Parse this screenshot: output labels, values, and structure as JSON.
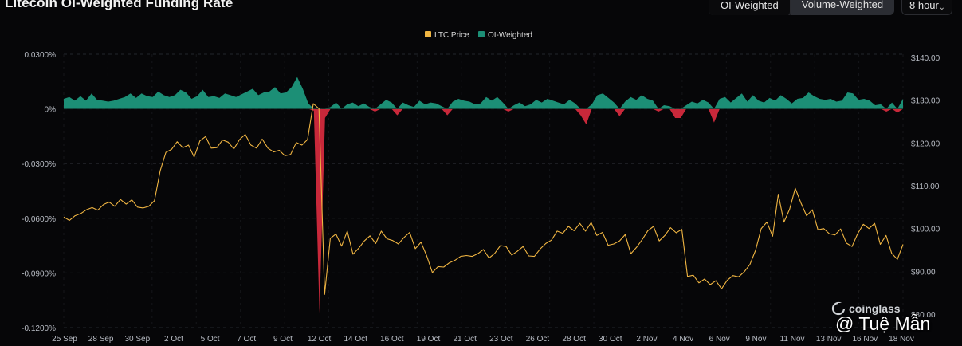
{
  "header": {
    "title": "Litecoin OI-Weighted Funding Rate",
    "toggle": [
      "OI-Weighted",
      "Volume-Weighted"
    ],
    "interval": "8 hour"
  },
  "watermark": {
    "brand": "coinglass",
    "user": "@ Tuệ Mẫn"
  },
  "colors": {
    "price": "#f0b542",
    "positive": "#1c8f76",
    "negative": "#c8283a",
    "grid": "#23252b",
    "text": "#b8bcc4"
  },
  "chart_data": {
    "type": "area",
    "legend": [
      "LTC Price",
      "OI-Weighted"
    ],
    "legend_position": "top-center",
    "x_ticks": [
      "25 Sep",
      "28 Sep",
      "30 Sep",
      "2 Oct",
      "5 Oct",
      "7 Oct",
      "9 Oct",
      "12 Oct",
      "14 Oct",
      "16 Oct",
      "19 Oct",
      "21 Oct",
      "23 Oct",
      "26 Oct",
      "28 Oct",
      "30 Oct",
      "2 Nov",
      "4 Nov",
      "6 Nov",
      "9 Nov",
      "11 Nov",
      "13 Nov",
      "16 Nov",
      "18 Nov"
    ],
    "y_left_ticks": [
      "0.0300%",
      "0%",
      "-0.0300%",
      "-0.0600%",
      "-0.0900%",
      "-0.1200%"
    ],
    "y_left_range": [
      -0.12,
      0.03
    ],
    "y_right_ticks": [
      "$140.00",
      "$130.00",
      "$120.00",
      "$110.00",
      "$100.00",
      "$90.00",
      "$80.00"
    ],
    "y_right_range": [
      80,
      140
    ],
    "series": [
      {
        "name": "OI-Weighted",
        "axis": "left",
        "values": [
          0.0055,
          0.0065,
          0.0045,
          0.007,
          0.0045,
          0.0085,
          0.005,
          0.0045,
          0.004,
          0.0045,
          0.0055,
          0.0065,
          0.0085,
          0.006,
          0.0085,
          0.007,
          0.0065,
          0.0095,
          0.0075,
          0.0065,
          0.0075,
          0.0105,
          0.009,
          0.0055,
          0.007,
          0.0105,
          0.0065,
          0.007,
          0.006,
          0.0085,
          0.0075,
          0.0065,
          0.008,
          0.0095,
          0.011,
          0.0075,
          0.009,
          0.0095,
          0.012,
          0.0085,
          0.009,
          0.012,
          0.0175,
          0.011,
          0.003,
          -0.001,
          -0.112,
          -0.005,
          0.001,
          0.0035,
          0.0,
          0.0025,
          0.0035,
          0.0015,
          0.003,
          0.001,
          -0.0015,
          0.0025,
          0.005,
          0.0035,
          -0.0035,
          0.0035,
          0.002,
          0.001,
          0.0045,
          0.0025,
          0.0035,
          0.003,
          0.0015,
          -0.0035,
          0.004,
          0.0055,
          0.0045,
          0.004,
          0.0025,
          0.003,
          0.0065,
          0.0045,
          0.0065,
          0.0035,
          -0.0015,
          0.002,
          0.0035,
          0.0015,
          0.0025,
          0.005,
          0.0035,
          0.0055,
          0.0045,
          0.0035,
          0.0025,
          0.005,
          0.003,
          -0.0035,
          -0.0085,
          0.0025,
          0.0075,
          0.0085,
          0.006,
          0.0035,
          -0.004,
          0.004,
          0.0065,
          0.005,
          0.0075,
          0.0055,
          0.0045,
          -0.0015,
          0.002,
          0.0015,
          -0.005,
          -0.005,
          0.002,
          0.004,
          0.003,
          0.005,
          0.0035,
          -0.0075,
          0.0055,
          0.0065,
          0.0035,
          0.006,
          0.0085,
          0.004,
          0.0075,
          0.0045,
          0.0035,
          0.006,
          0.0045,
          0.0075,
          0.0055,
          0.003,
          0.0055,
          0.006,
          0.009,
          0.007,
          0.0055,
          0.005,
          0.0055,
          0.004,
          0.0045,
          0.009,
          0.0085,
          0.005,
          0.0055,
          0.0045,
          0.002,
          0.0025,
          -0.0015,
          0.0035,
          -0.002,
          0.0055
        ]
      },
      {
        "name": "LTC Price",
        "axis": "right",
        "values": [
          102.7,
          101.9,
          103.0,
          103.5,
          104.4,
          104.9,
          104.3,
          105.6,
          106.2,
          105.2,
          106.8,
          105.7,
          106.7,
          105.0,
          104.8,
          105.2,
          106.5,
          113.5,
          117.8,
          118.5,
          120.3,
          118.9,
          119.5,
          116.7,
          120.5,
          121.5,
          118.8,
          118.9,
          120.7,
          120.2,
          118.6,
          120.8,
          122.0,
          119.5,
          118.8,
          120.9,
          118.8,
          117.9,
          118.3,
          117.0,
          117.3,
          120.1,
          119.5,
          120.8,
          129.2,
          128.0,
          84.6,
          97.7,
          98.7,
          95.9,
          99.4,
          94.0,
          95.4,
          97.1,
          98.3,
          96.5,
          99.4,
          97.6,
          97.2,
          96.4,
          97.9,
          99.1,
          95.3,
          96.8,
          93.6,
          89.7,
          91.1,
          91.0,
          92.0,
          92.6,
          93.5,
          93.7,
          93.5,
          94.1,
          95.1,
          93.1,
          94.2,
          96.0,
          95.8,
          93.8,
          94.7,
          95.8,
          93.6,
          93.5,
          95.2,
          96.5,
          97.3,
          99.4,
          98.9,
          100.5,
          99.5,
          101.2,
          99.4,
          101.4,
          98.4,
          99.1,
          96.1,
          96.4,
          97.1,
          98.6,
          94.1,
          95.6,
          97.4,
          99.5,
          100.5,
          97.1,
          98.4,
          100.2,
          99.0,
          99.8,
          88.8,
          89.1,
          87.3,
          88.2,
          86.9,
          87.8,
          85.9,
          87.9,
          89.0,
          88.7,
          89.9,
          91.6,
          94.9,
          100.0,
          101.5,
          98.2,
          108.0,
          101.5,
          104.5,
          109.4,
          106.0,
          103.0,
          104.4,
          99.7,
          100.0,
          98.8,
          98.5,
          99.9,
          96.6,
          95.8,
          98.8,
          101.0,
          100.0,
          101.2,
          96.3,
          98.4,
          94.2,
          92.8,
          96.3
        ]
      }
    ]
  }
}
